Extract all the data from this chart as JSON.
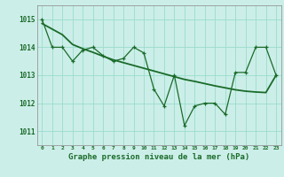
{
  "title": "Graphe pression niveau de la mer (hPa)",
  "bg_color": "#cceee8",
  "grid_color": "#99ddcc",
  "line_color": "#1a6b2a",
  "marker_color": "#1a6b2a",
  "xlim": [
    -0.5,
    23.5
  ],
  "ylim": [
    1010.5,
    1015.5
  ],
  "yticks": [
    1011,
    1012,
    1013,
    1014,
    1015
  ],
  "xticks": [
    0,
    1,
    2,
    3,
    4,
    5,
    6,
    7,
    8,
    9,
    10,
    11,
    12,
    13,
    14,
    15,
    16,
    17,
    18,
    19,
    20,
    21,
    22,
    23
  ],
  "hours": [
    0,
    1,
    2,
    3,
    4,
    5,
    6,
    7,
    8,
    9,
    10,
    11,
    12,
    13,
    14,
    15,
    16,
    17,
    18,
    19,
    20,
    21,
    22,
    23
  ],
  "pressure": [
    1015.0,
    1014.0,
    1014.0,
    1013.5,
    1013.9,
    1014.0,
    1013.7,
    1013.5,
    1013.6,
    1014.0,
    1013.8,
    1012.5,
    1011.9,
    1013.0,
    1011.2,
    1011.9,
    1012.0,
    1012.0,
    1011.6,
    1013.1,
    1013.1,
    1014.0,
    1014.0,
    1013.0
  ],
  "trend": [
    1014.85,
    1014.65,
    1014.45,
    1014.1,
    1013.95,
    1013.82,
    1013.68,
    1013.55,
    1013.45,
    1013.35,
    1013.25,
    1013.15,
    1013.05,
    1012.95,
    1012.85,
    1012.78,
    1012.7,
    1012.62,
    1012.55,
    1012.48,
    1012.43,
    1012.4,
    1012.38,
    1013.0
  ]
}
